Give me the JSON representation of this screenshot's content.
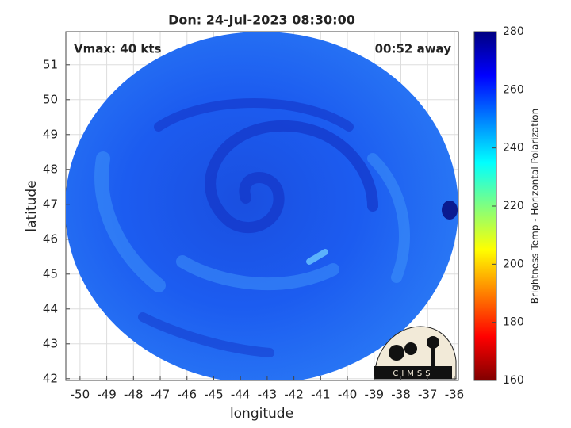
{
  "chart_data": {
    "type": "map",
    "title": "Don: 24-Jul-2023 08:30:00",
    "xlabel": "longitude",
    "ylabel": "latitude",
    "annotations": [
      "Vmax: 40 kts",
      "00:52 away"
    ],
    "logo": "CIMSS",
    "xlim": [
      -50.53,
      -35.85
    ],
    "ylim": [
      41.95,
      51.95
    ],
    "xticks": [
      -50,
      -49,
      -48,
      -47,
      -46,
      -45,
      -44,
      -43,
      -42,
      -41,
      -40,
      -39,
      -38,
      -37,
      -36
    ],
    "yticks": [
      42,
      43,
      44,
      45,
      46,
      47,
      48,
      49,
      50,
      51
    ],
    "grid": true,
    "colorbar": {
      "label": "Brightness Temp - Horizontal Polarization",
      "lim": [
        160,
        280
      ],
      "ticks": [
        160,
        180,
        200,
        220,
        240,
        260,
        280
      ],
      "colors": [
        "#800000",
        "#ff0000",
        "#ff8000",
        "#ffff00",
        "#80ff80",
        "#00ffff",
        "#0080ff",
        "#0000ff",
        "#000080"
      ]
    }
  }
}
